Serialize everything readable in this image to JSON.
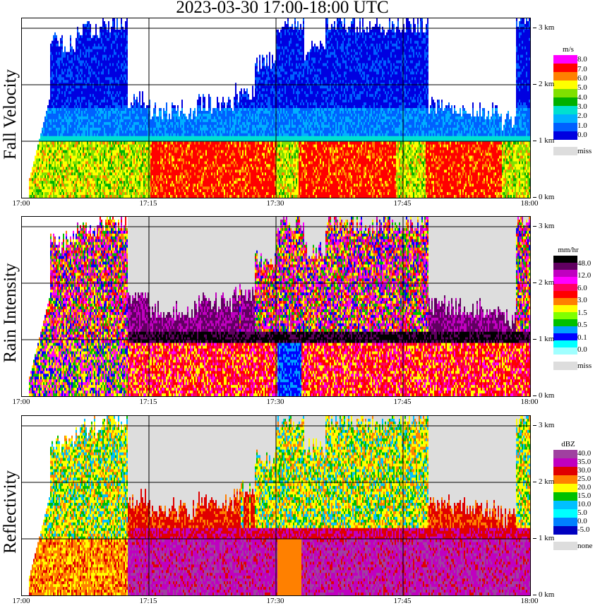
{
  "title": "2023-03-30  17:00-18:00 UTC",
  "x_ticks": [
    "17:00",
    "17:15",
    "17:30",
    "17:45",
    "18:00"
  ],
  "y_ticks": [
    "0 km",
    "1 km",
    "2 km",
    "3 km"
  ],
  "chart_data": [
    {
      "type": "heatmap",
      "title": "Fall Velocity",
      "ylabel": "Fall Velocity",
      "x_range": [
        "17:00",
        "18:00"
      ],
      "y_range_km": [
        0,
        3.2
      ],
      "legend": {
        "unit": "m/s",
        "levels": [
          "8.0",
          "7.0",
          "6.0",
          "5.0",
          "4.0",
          "3.0",
          "2.0",
          "1.0",
          "0.0"
        ],
        "colors": [
          "#ff00ff",
          "#ff0000",
          "#ff8000",
          "#ffff00",
          "#80e000",
          "#00b000",
          "#00e0d0",
          "#00b0ff",
          "#0060ff",
          "#0000e0"
        ],
        "missing_label": "miss",
        "missing_color": "#dddddd"
      }
    },
    {
      "type": "heatmap",
      "title": "Rain Intensity",
      "ylabel": "Rain Intensity",
      "x_range": [
        "17:00",
        "18:00"
      ],
      "y_range_km": [
        0,
        3.2
      ],
      "legend": {
        "unit": "mm/hr",
        "levels": [
          "48.0",
          "12.0",
          "6.0",
          "3.0",
          "1.5",
          "0.5",
          "0.1",
          "0.0"
        ],
        "colors": [
          "#000000",
          "#600060",
          "#c000c0",
          "#ff00ff",
          "#ff0060",
          "#ff0000",
          "#ff8000",
          "#ffff00",
          "#80ff00",
          "#00c000",
          "#00a0ff",
          "#0000ff",
          "#00ffff",
          "#a0ffff"
        ],
        "missing_label": "miss",
        "missing_color": "#dddddd"
      }
    },
    {
      "type": "heatmap",
      "title": "Reflectivity",
      "ylabel": "Reflectivity",
      "x_range": [
        "17:00",
        "18:00"
      ],
      "y_range_km": [
        0,
        3.2
      ],
      "legend": {
        "unit": "dBZ",
        "levels": [
          "40.0",
          "35.0",
          "30.0",
          "25.0",
          "20.0",
          "15.0",
          "10.0",
          "5.0",
          "0.0",
          "-5.0"
        ],
        "colors": [
          "#a040a0",
          "#c000c0",
          "#e00000",
          "#ff8000",
          "#ffff00",
          "#00c000",
          "#00c0ff",
          "#00ffff",
          "#0080ff",
          "#0000c0"
        ],
        "missing_label": "none",
        "missing_color": "#dddddd"
      }
    }
  ]
}
